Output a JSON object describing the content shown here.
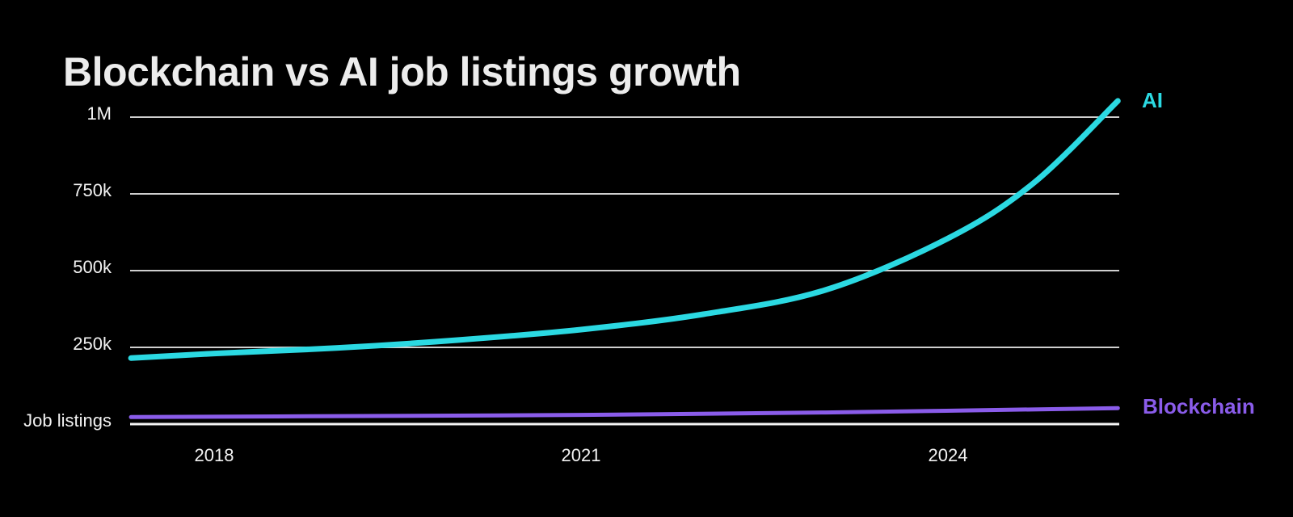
{
  "colors": {
    "background": "#000000",
    "title_text": "#ececec",
    "tick_text": "#f2f2f2",
    "gridline": "#cfcfcf",
    "baseline": "#f5f5f5"
  },
  "title": {
    "text": "Blockchain vs AI job listings growth"
  },
  "chart_data": {
    "type": "line",
    "title": "Blockchain vs AI job listings growth",
    "xlabel": "",
    "ylabel": "Job listings",
    "x_range": [
      2017.32,
      2025.39
    ],
    "ylim": [
      0,
      1000000
    ],
    "grid": "horizontal-only",
    "legend_position": "line-end-labels-right",
    "x_ticks": [
      {
        "label": "2018",
        "year": 2018
      },
      {
        "label": "2021",
        "year": 2021
      },
      {
        "label": "2024",
        "year": 2024
      }
    ],
    "y_ticks": [
      {
        "label": "1M",
        "value": 1000000
      },
      {
        "label": "750k",
        "value": 750000
      },
      {
        "label": "500k",
        "value": 500000
      },
      {
        "label": "250k",
        "value": 250000
      },
      {
        "label": "Job listings",
        "value": 0
      }
    ],
    "series": [
      {
        "name": "AI",
        "color": "#2bd9e2",
        "points": [
          [
            2017.32,
            215000
          ],
          [
            2018.0,
            230000
          ],
          [
            2019.0,
            248000
          ],
          [
            2020.0,
            274000
          ],
          [
            2021.0,
            308000
          ],
          [
            2022.0,
            358000
          ],
          [
            2023.0,
            437000
          ],
          [
            2024.0,
            605000
          ],
          [
            2024.7,
            785000
          ],
          [
            2025.39,
            1053000
          ]
        ]
      },
      {
        "name": "Blockchain",
        "color": "#8a5cea",
        "points": [
          [
            2017.32,
            23000
          ],
          [
            2019.0,
            26000
          ],
          [
            2021.0,
            30000
          ],
          [
            2023.0,
            38000
          ],
          [
            2025.39,
            52000
          ]
        ]
      }
    ]
  }
}
